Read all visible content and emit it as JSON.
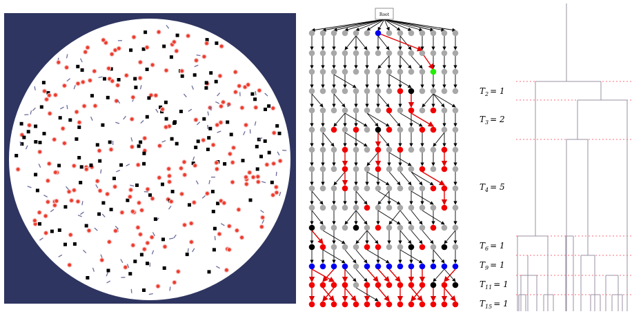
{
  "tree": {
    "root_label": "Root",
    "colors": {
      "gray": "#a8a8a8",
      "black": "#000000",
      "red": "#f20000",
      "blue": "#0000f0",
      "green": "#22ee00",
      "edge_red": "#e00000",
      "edge_black": "#000000"
    }
  },
  "dendrogram": {
    "line_color": "#9a8fa0",
    "dash_color": "#ff6a7a",
    "labels": [
      {
        "name": "T",
        "sub": "2",
        "val": "= 1"
      },
      {
        "name": "T",
        "sub": "3",
        "val": "= 2"
      },
      {
        "name": "T",
        "sub": "4",
        "val": "= 5"
      },
      {
        "name": "T",
        "sub": "6",
        "val": "= 1"
      },
      {
        "name": "T",
        "sub": "9",
        "val": "= 1"
      },
      {
        "name": "T",
        "sub": "11",
        "val": "= 1"
      },
      {
        "name": "T",
        "sub": "15",
        "val": "= 1"
      }
    ]
  },
  "simulation": {
    "background": "#2e3560",
    "disk_color": "#ffffff",
    "particle_colors": {
      "red": "#ee3b2b",
      "black": "#000000",
      "arrow": "#6a6b9a"
    }
  }
}
